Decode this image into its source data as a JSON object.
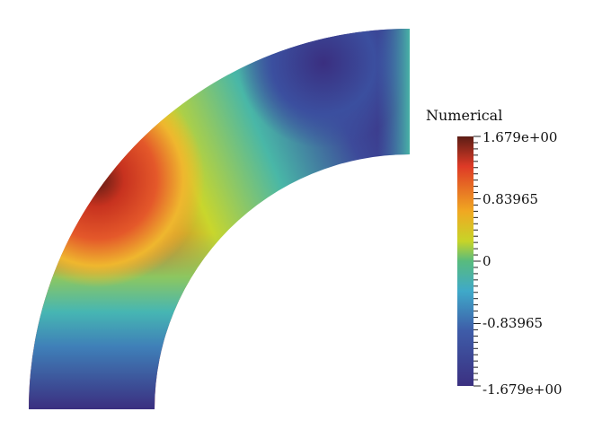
{
  "legend": {
    "title": "Numerical",
    "max_label": "1.679e+00",
    "upper_label": "0.83965",
    "mid_label": "0",
    "lower_label": "-0.83965",
    "min_label": "-1.679e+00"
  },
  "colormap": [
    "#3b3081",
    "#3e5ca8",
    "#3fa9c9",
    "#58bb7e",
    "#c7d428",
    "#f0a822",
    "#de3a26",
    "#5c1d15"
  ]
}
